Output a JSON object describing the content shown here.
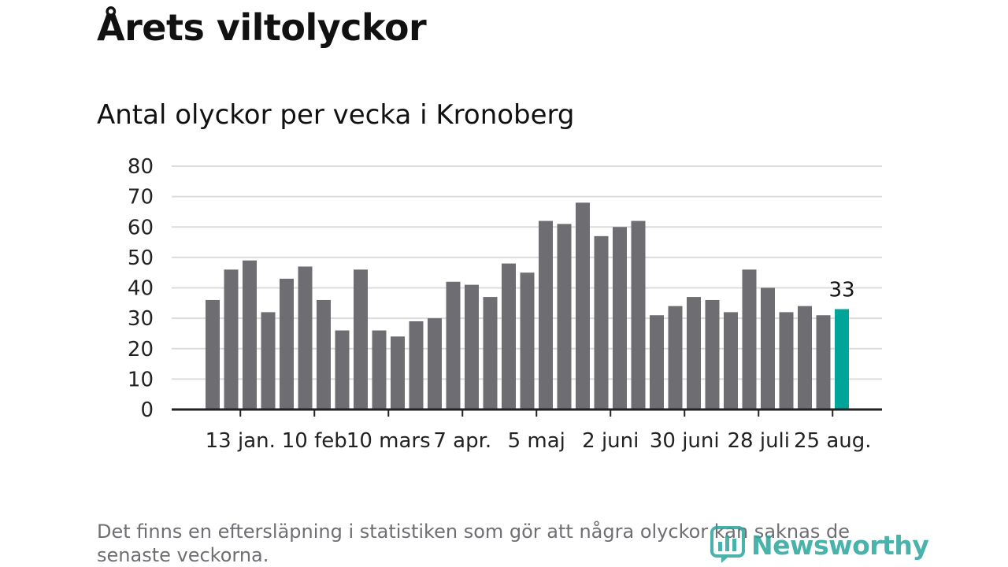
{
  "title": "Årets viltolyckor",
  "subtitle": "Antal olyckor per vecka i Kronoberg",
  "footnote": "Det finns en eftersläpning i statistiken som gör att några olyckor kan saknas de senaste veckorna.",
  "brand": {
    "name": "Newsworthy",
    "color": "#2aa59c",
    "icon": "chart-logo-icon"
  },
  "chart_data": {
    "type": "bar",
    "ylim": [
      0,
      80
    ],
    "yticks": [
      0,
      10,
      20,
      30,
      40,
      50,
      60,
      70,
      80
    ],
    "grid": true,
    "bar_color": "#6e6d72",
    "highlight_color": "#00a499",
    "values": [
      36,
      46,
      49,
      32,
      43,
      47,
      36,
      26,
      46,
      26,
      24,
      29,
      30,
      42,
      41,
      37,
      48,
      45,
      62,
      61,
      68,
      57,
      60,
      62,
      31,
      34,
      37,
      36,
      32,
      46,
      40,
      32,
      34,
      31,
      33
    ],
    "highlight_index": 34,
    "highlight_label": "33",
    "xtick_labels": [
      {
        "bar_index": 1.5,
        "label": "13 jan."
      },
      {
        "bar_index": 5.5,
        "label": "10 feb"
      },
      {
        "bar_index": 9.5,
        "label": "10 mars"
      },
      {
        "bar_index": 13.5,
        "label": "7 apr."
      },
      {
        "bar_index": 17.5,
        "label": "5 maj"
      },
      {
        "bar_index": 21.5,
        "label": "2 juni"
      },
      {
        "bar_index": 25.5,
        "label": "30 juni"
      },
      {
        "bar_index": 29.5,
        "label": "28 juli"
      },
      {
        "bar_index": 33.5,
        "label": "25 aug."
      }
    ]
  }
}
